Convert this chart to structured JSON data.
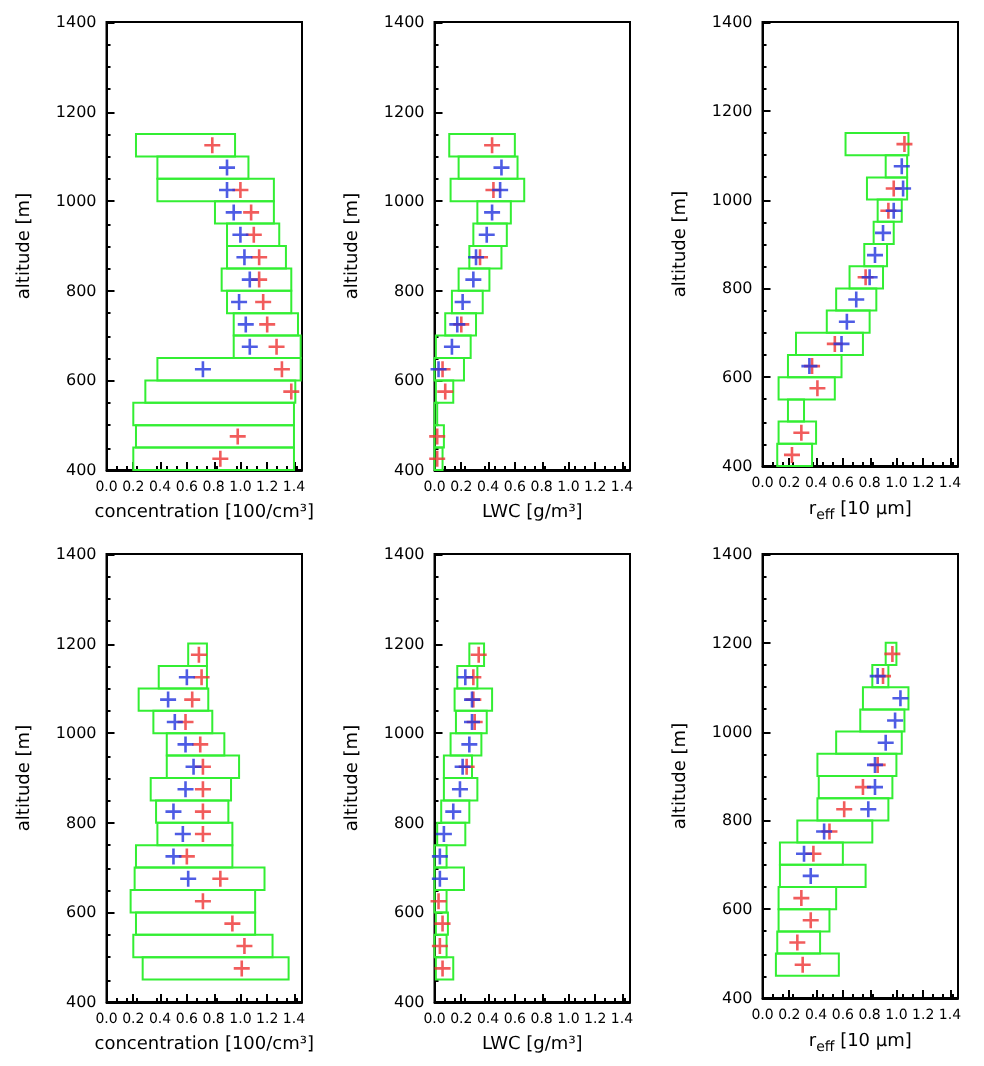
{
  "chart_data": [
    {
      "type": "scatter",
      "orientation": "horizontal",
      "marker": "cross",
      "xlabel": "concentration [100/cm³]",
      "ylabel": "altitude [m]",
      "xlim": [
        0,
        1.46
      ],
      "xticks": [
        {
          "value": 0,
          "label": "0.0"
        },
        {
          "value": 0.2,
          "label": "0.2"
        },
        {
          "value": 0.4,
          "label": "0.4"
        },
        {
          "value": 0.6,
          "label": "0.6"
        },
        {
          "value": 0.8,
          "label": "0.8"
        },
        {
          "value": 1,
          "label": "1.0"
        },
        {
          "value": 1.2,
          "label": "1.2"
        },
        {
          "value": 1.4,
          "label": "1.4"
        }
      ],
      "ylim": [
        400,
        1400
      ],
      "yticks": [
        400,
        600,
        800,
        1000,
        1200,
        1400
      ],
      "x": [
        1125,
        1075,
        1025,
        975,
        925,
        875,
        825,
        775,
        725,
        675,
        625,
        575,
        525,
        475,
        425
      ],
      "series": [
        {
          "type": "bar",
          "color": "#33ee33",
          "base": [
            0.22,
            0.38,
            0.38,
            0.81,
            0.9,
            0.9,
            0.86,
            0.9,
            0.95,
            0.95,
            0.38,
            0.29,
            0.2,
            0.22,
            0.2
          ],
          "values": [
            0.74,
            0.68,
            0.87,
            0.44,
            0.39,
            0.44,
            0.52,
            0.48,
            0.48,
            0.5,
            1.07,
            1.12,
            1.2,
            1.18,
            1.2
          ]
        },
        {
          "color": "#ee3333",
          "values": [
            0.79,
            null,
            1.0,
            1.08,
            1.1,
            1.14,
            1.14,
            1.17,
            1.2,
            1.27,
            1.31,
            1.38,
            null,
            0.98,
            0.85
          ]
        },
        {
          "color": "#2233dd",
          "values": [
            null,
            0.9,
            0.9,
            0.95,
            1.0,
            1.03,
            1.07,
            0.99,
            1.04,
            1.07,
            0.72,
            null,
            null,
            null,
            null
          ]
        }
      ]
    },
    {
      "type": "scatter",
      "orientation": "horizontal",
      "marker": "cross",
      "xlabel": "LWC [g/m³]",
      "ylabel": "altitude [m]",
      "xlim": [
        0,
        1.46
      ],
      "xticks": [
        {
          "value": 0,
          "label": "0.0"
        },
        {
          "value": 0.2,
          "label": "0.2"
        },
        {
          "value": 0.4,
          "label": "0.4"
        },
        {
          "value": 0.6,
          "label": "0.6"
        },
        {
          "value": 0.8,
          "label": "0.8"
        },
        {
          "value": 1,
          "label": "1.0"
        },
        {
          "value": 1.2,
          "label": "1.2"
        },
        {
          "value": 1.4,
          "label": "1.4"
        }
      ],
      "ylim": [
        400,
        1400
      ],
      "yticks": [
        400,
        600,
        800,
        1000,
        1200,
        1400
      ],
      "x": [
        1125,
        1075,
        1025,
        975,
        925,
        875,
        825,
        775,
        725,
        675,
        625,
        575,
        525,
        475,
        425
      ],
      "series": [
        {
          "type": "bar",
          "color": "#33ee33",
          "base": [
            0.11,
            0.18,
            0.12,
            0.32,
            0.29,
            0.26,
            0.18,
            0.13,
            0.08,
            0.01,
            0.0,
            0.01,
            0.0,
            0.0,
            0.0
          ],
          "values": [
            0.49,
            0.44,
            0.55,
            0.25,
            0.25,
            0.24,
            0.23,
            0.23,
            0.23,
            0.26,
            0.22,
            0.13,
            0.02,
            0.07,
            0.06
          ]
        },
        {
          "color": "#ee3333",
          "values": [
            0.43,
            null,
            0.44,
            null,
            null,
            0.34,
            null,
            null,
            0.2,
            null,
            0.06,
            0.08,
            null,
            0.02,
            0.02
          ]
        },
        {
          "color": "#2233dd",
          "values": [
            null,
            0.5,
            0.49,
            0.43,
            0.39,
            0.31,
            0.29,
            0.21,
            0.17,
            0.13,
            0.03,
            null,
            null,
            null,
            null
          ]
        }
      ]
    },
    {
      "type": "scatter",
      "orientation": "horizontal",
      "marker": "cross",
      "xlabel": "r$_{eff}$ [10 μm]",
      "ylabel": "altitude [m]",
      "xlim": [
        0,
        1.46
      ],
      "xticks": [
        {
          "value": 0,
          "label": "0.0"
        },
        {
          "value": 0.2,
          "label": "0.2"
        },
        {
          "value": 0.4,
          "label": "0.4"
        },
        {
          "value": 0.6,
          "label": "0.6"
        },
        {
          "value": 0.8,
          "label": "0.8"
        },
        {
          "value": 1,
          "label": "1.0"
        },
        {
          "value": 1.2,
          "label": "1.2"
        },
        {
          "value": 1.4,
          "label": "1.4"
        }
      ],
      "ylim": [
        400,
        1400
      ],
      "yticks": [
        400,
        600,
        800,
        1000,
        1200,
        1400
      ],
      "x": [
        1125,
        1075,
        1025,
        975,
        925,
        875,
        825,
        775,
        725,
        675,
        625,
        575,
        525,
        475,
        425
      ],
      "series": [
        {
          "type": "bar",
          "color": "#33ee33",
          "base": [
            0.62,
            0.92,
            0.78,
            0.86,
            0.83,
            0.76,
            0.65,
            0.55,
            0.48,
            0.25,
            0.19,
            0.12,
            0.19,
            0.12,
            0.11
          ],
          "values": [
            0.47,
            0.16,
            0.3,
            0.18,
            0.15,
            0.17,
            0.25,
            0.3,
            0.32,
            0.5,
            0.4,
            0.42,
            0.12,
            0.28,
            0.26
          ]
        },
        {
          "color": "#ee3333",
          "values": [
            1.06,
            null,
            0.98,
            0.94,
            null,
            null,
            0.77,
            null,
            null,
            0.54,
            0.37,
            0.41,
            null,
            0.29,
            0.22
          ]
        },
        {
          "color": "#2233dd",
          "values": [
            null,
            1.04,
            1.05,
            0.98,
            0.9,
            0.84,
            0.8,
            0.7,
            0.63,
            0.59,
            0.35,
            null,
            null,
            null,
            null
          ]
        }
      ]
    },
    {
      "type": "scatter",
      "orientation": "horizontal",
      "marker": "cross",
      "xlabel": "concentration [100/cm³]",
      "ylabel": "altitude [m]",
      "xlim": [
        0,
        1.46
      ],
      "xticks": [
        {
          "value": 0,
          "label": "0.0"
        },
        {
          "value": 0.2,
          "label": "0.2"
        },
        {
          "value": 0.4,
          "label": "0.4"
        },
        {
          "value": 0.6,
          "label": "0.6"
        },
        {
          "value": 0.8,
          "label": "0.8"
        },
        {
          "value": 1,
          "label": "1.0"
        },
        {
          "value": 1.2,
          "label": "1.2"
        },
        {
          "value": 1.4,
          "label": "1.4"
        }
      ],
      "ylim": [
        400,
        1400
      ],
      "yticks": [
        400,
        600,
        800,
        1000,
        1200,
        1400
      ],
      "x": [
        1175,
        1125,
        1075,
        1025,
        975,
        925,
        875,
        825,
        775,
        725,
        675,
        625,
        575,
        525,
        475
      ],
      "series": [
        {
          "type": "bar",
          "color": "#33ee33",
          "base": [
            0.61,
            0.39,
            0.24,
            0.35,
            0.45,
            0.45,
            0.33,
            0.37,
            0.38,
            0.22,
            0.21,
            0.18,
            0.22,
            0.2,
            0.27
          ],
          "values": [
            0.14,
            0.36,
            0.52,
            0.44,
            0.43,
            0.54,
            0.6,
            0.54,
            0.56,
            0.72,
            0.97,
            0.93,
            0.89,
            1.04,
            1.09
          ]
        },
        {
          "color": "#ee3333",
          "values": [
            0.69,
            0.71,
            0.64,
            0.59,
            0.7,
            0.72,
            0.72,
            0.72,
            0.72,
            0.6,
            0.85,
            0.72,
            0.94,
            1.03,
            1.01
          ]
        },
        {
          "color": "#2233dd",
          "values": [
            null,
            0.6,
            0.46,
            0.51,
            0.59,
            0.65,
            0.59,
            0.5,
            0.57,
            0.5,
            0.61,
            null,
            null,
            null,
            null
          ]
        }
      ]
    },
    {
      "type": "scatter",
      "orientation": "horizontal",
      "marker": "cross",
      "xlabel": "LWC [g/m³]",
      "ylabel": "altitude [m]",
      "xlim": [
        0,
        1.46
      ],
      "xticks": [
        {
          "value": 0,
          "label": "0.0"
        },
        {
          "value": 0.2,
          "label": "0.2"
        },
        {
          "value": 0.4,
          "label": "0.4"
        },
        {
          "value": 0.6,
          "label": "0.6"
        },
        {
          "value": 0.8,
          "label": "0.8"
        },
        {
          "value": 1,
          "label": "1.0"
        },
        {
          "value": 1.2,
          "label": "1.2"
        },
        {
          "value": 1.4,
          "label": "1.4"
        }
      ],
      "ylim": [
        400,
        1400
      ],
      "yticks": [
        400,
        600,
        800,
        1000,
        1200,
        1400
      ],
      "x": [
        1175,
        1125,
        1075,
        1025,
        975,
        925,
        875,
        825,
        775,
        725,
        675,
        625,
        575,
        525,
        475
      ],
      "series": [
        {
          "type": "bar",
          "color": "#33ee33",
          "base": [
            0.26,
            0.17,
            0.15,
            0.16,
            0.12,
            0.07,
            0.07,
            0.05,
            0.02,
            0.0,
            0.0,
            0.0,
            0.01,
            0.0,
            0.01
          ],
          "values": [
            0.11,
            0.15,
            0.28,
            0.23,
            0.23,
            0.21,
            0.25,
            0.21,
            0.21,
            0.09,
            0.22,
            0.09,
            0.09,
            0.09,
            0.13
          ]
        },
        {
          "color": "#ee3333",
          "values": [
            0.33,
            0.29,
            0.29,
            0.3,
            null,
            0.24,
            null,
            null,
            null,
            null,
            null,
            0.03,
            0.06,
            0.04,
            0.06
          ]
        },
        {
          "color": "#2233dd",
          "values": [
            null,
            0.23,
            0.28,
            0.28,
            0.26,
            0.21,
            0.19,
            0.14,
            0.07,
            0.04,
            0.04,
            null,
            null,
            null,
            null
          ]
        }
      ]
    },
    {
      "type": "scatter",
      "orientation": "horizontal",
      "marker": "cross",
      "xlabel": "r$_{eff}$ [10 μm]",
      "ylabel": "altitude [m]",
      "xlim": [
        0,
        1.46
      ],
      "xticks": [
        {
          "value": 0,
          "label": "0.0"
        },
        {
          "value": 0.2,
          "label": "0.2"
        },
        {
          "value": 0.4,
          "label": "0.4"
        },
        {
          "value": 0.6,
          "label": "0.6"
        },
        {
          "value": 0.8,
          "label": "0.8"
        },
        {
          "value": 1,
          "label": "1.0"
        },
        {
          "value": 1.2,
          "label": "1.2"
        },
        {
          "value": 1.4,
          "label": "1.4"
        }
      ],
      "ylim": [
        400,
        1400
      ],
      "yticks": [
        400,
        600,
        800,
        1000,
        1200,
        1400
      ],
      "x": [
        1175,
        1125,
        1075,
        1025,
        975,
        925,
        875,
        825,
        775,
        725,
        675,
        625,
        575,
        525,
        475
      ],
      "series": [
        {
          "type": "bar",
          "color": "#33ee33",
          "base": [
            0.92,
            0.82,
            0.75,
            0.73,
            0.55,
            0.41,
            0.42,
            0.41,
            0.26,
            0.13,
            0.13,
            0.12,
            0.12,
            0.11,
            0.1
          ],
          "values": [
            0.08,
            0.12,
            0.34,
            0.33,
            0.49,
            0.59,
            0.55,
            0.53,
            0.56,
            0.47,
            0.64,
            0.43,
            0.38,
            0.32,
            0.47
          ]
        },
        {
          "color": "#ee3333",
          "values": [
            0.97,
            0.9,
            null,
            null,
            null,
            0.86,
            0.75,
            0.61,
            0.5,
            0.38,
            null,
            0.29,
            0.36,
            0.26,
            0.3
          ]
        },
        {
          "color": "#2233dd",
          "values": [
            null,
            0.86,
            1.03,
            0.99,
            0.92,
            0.84,
            0.84,
            0.79,
            0.46,
            0.31,
            0.36,
            null,
            null,
            null,
            null
          ]
        }
      ]
    }
  ]
}
